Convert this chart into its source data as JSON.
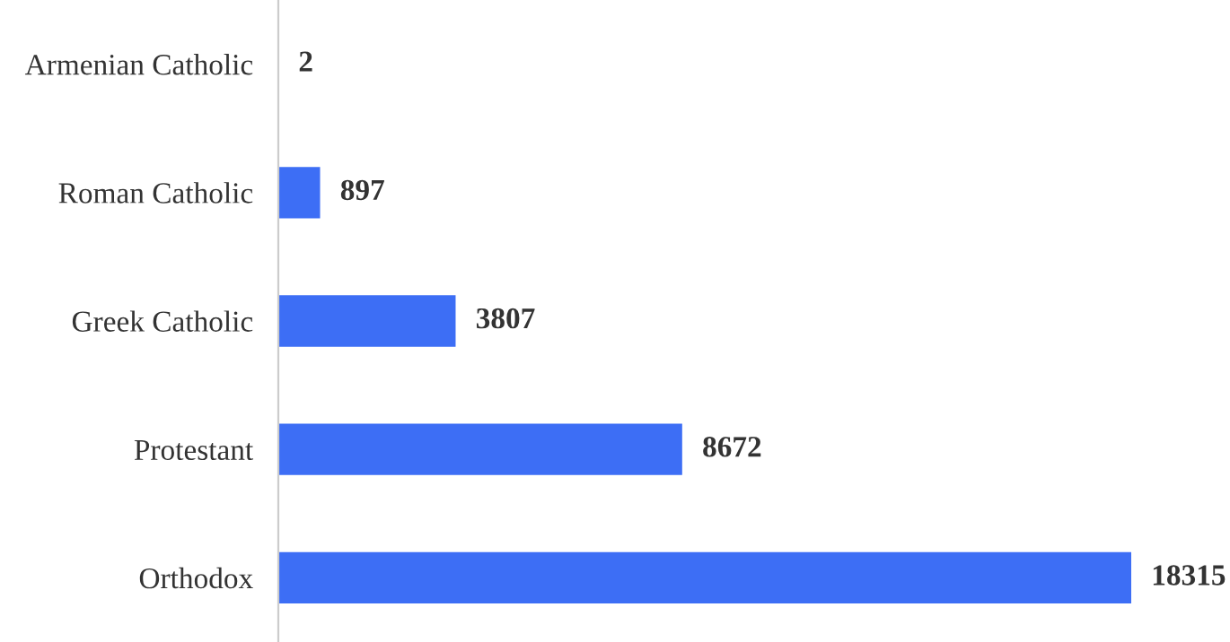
{
  "chart_data": {
    "type": "bar",
    "orientation": "horizontal",
    "categories": [
      "Armenian Catholic",
      "Roman Catholic",
      "Greek Catholic",
      "Protestant",
      "Orthodox"
    ],
    "values": [
      2,
      897,
      3807,
      8672,
      18315
    ],
    "color": "#3d6ef5",
    "data_labels": true,
    "grid": false,
    "legend": false
  }
}
